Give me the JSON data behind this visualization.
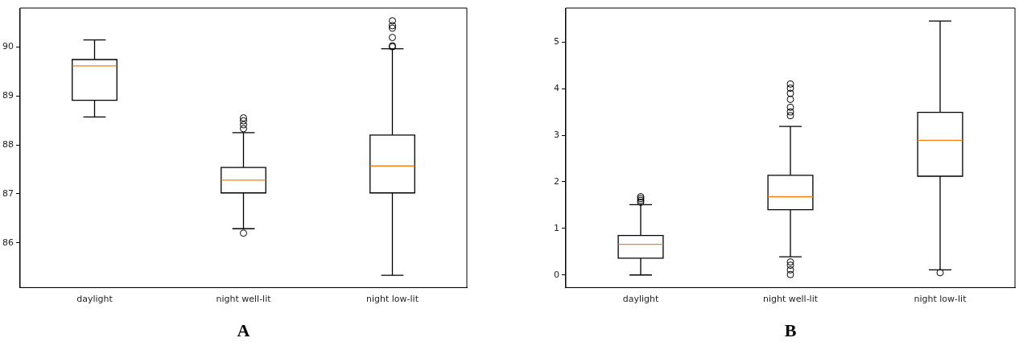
{
  "chart_data": [
    {
      "type": "box",
      "xlabel": "A",
      "categories": [
        "daylight",
        "night well-lit",
        "night low-lit"
      ],
      "ylim": [
        85.09,
        90.79
      ],
      "yticks": [
        86,
        87,
        88,
        89,
        90
      ],
      "grid": false,
      "series": [
        {
          "color": "#000000",
          "boxes": [
            {
              "low": 88.57,
              "q1": 88.91,
              "median": 89.61,
              "q3": 89.74,
              "high": 90.14
            },
            {
              "low": 86.29,
              "q1": 87.02,
              "median": 87.28,
              "q3": 87.54,
              "high": 88.25,
              "outliers": [
                86.2,
                88.33,
                88.41,
                88.49,
                88.55
              ]
            },
            {
              "low": 85.34,
              "q1": 87.02,
              "median": 87.57,
              "q3": 88.2,
              "high": 89.96,
              "outliers": [
                90.0,
                90.02,
                90.19,
                90.38,
                90.43,
                90.53
              ]
            }
          ]
        }
      ]
    },
    {
      "type": "box",
      "xlabel": "B",
      "categories": [
        "daylight",
        "night well-lit",
        "night low-lit"
      ],
      "ylim": [
        -0.27,
        5.73
      ],
      "yticks": [
        0,
        1,
        2,
        3,
        4,
        5
      ],
      "grid": false,
      "series": [
        {
          "color": "#000000",
          "boxes": [
            {
              "low": 0,
              "q1": 0.36,
              "median": 0.66,
              "q3": 0.85,
              "high": 1.51,
              "outliers": [
                1.56,
                1.6,
                1.64,
                1.68
              ]
            },
            {
              "low": 0.39,
              "q1": 1.4,
              "median": 1.68,
              "q3": 2.14,
              "high": 3.19,
              "outliers": [
                0.01,
                0.11,
                0.21,
                0.28,
                3.42,
                3.5,
                3.6,
                3.77,
                3.9,
                4.01,
                4.1
              ]
            },
            {
              "low": 0.11,
              "q1": 2.12,
              "median": 2.89,
              "q3": 3.49,
              "high": 5.45,
              "outliers": [
                0.05
              ]
            }
          ]
        }
      ]
    }
  ]
}
